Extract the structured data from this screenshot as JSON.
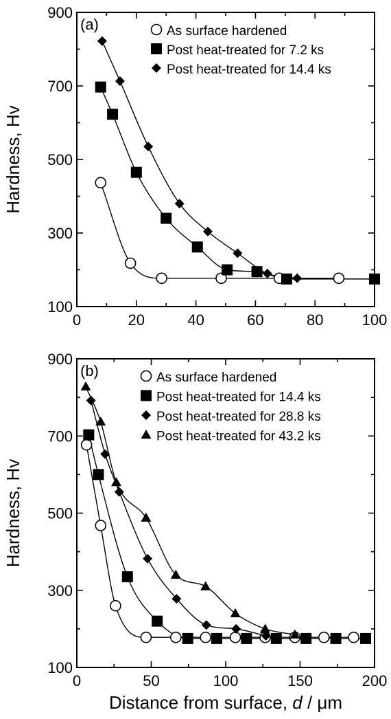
{
  "chart_data": [
    {
      "type": "scatter",
      "panel_label": "(a)",
      "ylabel": "Hardness, Hv",
      "xlabel": "",
      "xlim": [
        0,
        100
      ],
      "ylim": [
        100,
        900
      ],
      "xticks": [
        "0",
        "20",
        "40",
        "60",
        "80",
        "100"
      ],
      "yticks": [
        "100",
        "300",
        "500",
        "700",
        "900"
      ],
      "legend_position": "top-right",
      "series": [
        {
          "name": "As surface hardened",
          "marker": "circle",
          "x": [
            8,
            18,
            28.5,
            48.5,
            68,
            88
          ],
          "y": [
            437,
            218,
            177,
            177,
            177,
            177
          ]
        },
        {
          "name": "Post heat-treated for 7.2 ks",
          "marker": "square",
          "x": [
            8,
            12,
            20,
            30,
            40.5,
            50.5,
            60.5,
            70.5,
            100
          ],
          "y": [
            697,
            623,
            465,
            340,
            262,
            200,
            195,
            175,
            175
          ]
        },
        {
          "name": "Post heat-treated for 14.4 ks",
          "marker": "diamond",
          "x": [
            8.5,
            14.5,
            24,
            34.5,
            44,
            54,
            64,
            74
          ],
          "y": [
            822,
            713,
            535,
            380,
            304,
            245,
            190,
            177
          ]
        }
      ]
    },
    {
      "type": "scatter",
      "panel_label": "(b)",
      "ylabel": "Hardness, Hv",
      "xlabel": "Distance from surface, d / μm",
      "xlim": [
        0,
        200
      ],
      "ylim": [
        100,
        900
      ],
      "xticks": [
        "0",
        "50",
        "100",
        "150",
        "200"
      ],
      "yticks": [
        "100",
        "300",
        "500",
        "700",
        "900"
      ],
      "legend_position": "top-right",
      "series": [
        {
          "name": "As surface hardened",
          "marker": "circle",
          "x": [
            6.5,
            16,
            26,
            46.5,
            66.5,
            86.5,
            106.5,
            126.5,
            146.5,
            166,
            186
          ],
          "y": [
            677,
            468,
            260,
            178,
            178,
            178,
            178,
            178,
            178,
            178,
            178
          ]
        },
        {
          "name": "Post heat-treated for 14.4 ks",
          "marker": "square",
          "x": [
            8,
            14.5,
            34,
            54,
            74.5,
            94,
            114,
            134,
            154,
            174,
            194
          ],
          "y": [
            703,
            600,
            335,
            220,
            175,
            175,
            175,
            175,
            175,
            175,
            175
          ]
        },
        {
          "name": "Post heat-treated for 28.8 ks",
          "marker": "diamond",
          "x": [
            9.5,
            19,
            28.5,
            47.5,
            67,
            87,
            107,
            127
          ],
          "y": [
            792,
            653,
            555,
            382,
            278,
            210,
            200,
            182
          ]
        },
        {
          "name": "Post heat-treated for 43.2 ks",
          "marker": "triangle",
          "x": [
            6,
            16,
            26.5,
            46.5,
            66.5,
            86.5,
            106.5,
            126.5,
            146.5
          ],
          "y": [
            828,
            737,
            580,
            488,
            340,
            310,
            240,
            200,
            185
          ]
        }
      ]
    }
  ]
}
